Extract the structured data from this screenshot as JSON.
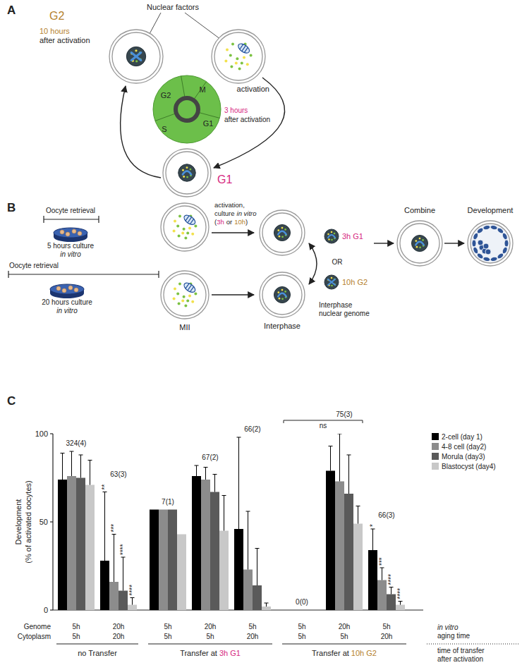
{
  "panel_a": {
    "label": "A",
    "nuclear_factors": "Nuclear factors",
    "activation": "activation",
    "g2": {
      "phase": "G2",
      "time": "10 hours",
      "note": "after activation"
    },
    "g1": {
      "phase": "G1",
      "time": "3 hours",
      "note": "after activation"
    },
    "cycle": [
      "G2",
      "M",
      "S",
      "G1"
    ]
  },
  "panel_b": {
    "label": "B",
    "retrieval": "Oocyte retrieval",
    "short_culture": [
      "5 hours culture",
      "in vitro"
    ],
    "long_culture": [
      "20 hours culture",
      "in vitro"
    ],
    "mii": "MII",
    "activation": {
      "line1": "activation,",
      "line2": "culture",
      "line2_italic": "in vitro",
      "open": "(",
      "early": "3h",
      "or": "or",
      "late": "10h",
      "close": ")"
    },
    "interphase": "Interphase",
    "g1_genome": "3h G1",
    "or": "OR",
    "g2_genome": "10h G2",
    "genome_label": [
      "Interphase",
      "nuclear genome"
    ],
    "combine": "Combine",
    "development": "Development"
  },
  "chart_data": {
    "type": "bar",
    "label": "C",
    "ylabel": [
      "Development",
      "(% of activated oocytes)"
    ],
    "categories": [
      "5h",
      "20h",
      "5h",
      "20h",
      "5h",
      "5h",
      "20h",
      "5h"
    ],
    "cytoplasm": [
      "5h",
      "20h",
      "5h",
      "5h",
      "20h",
      "5h",
      "5h",
      "20h"
    ],
    "row_labels": [
      "Genome",
      "Cytoplasm"
    ],
    "row_title": [
      "in vitro",
      "aging time"
    ],
    "group_title": [
      "time of transfer",
      "after activation"
    ],
    "groups": [
      {
        "label": "no Transfer",
        "span": [
          0,
          1
        ]
      },
      {
        "label": "Transfer at",
        "stage": "3h G1",
        "span": [
          2,
          4
        ]
      },
      {
        "label": "Transfer at",
        "stage": "10h G2",
        "span": [
          5,
          7
        ]
      }
    ],
    "n_labels": [
      "324(4)",
      "63(3)",
      "7(1)",
      "67(2)",
      "66(2)",
      "0(0)",
      "75(3)",
      "66(3)"
    ],
    "ylim": [
      0,
      100
    ],
    "yticks": [
      0,
      50,
      100
    ],
    "legend": "top-right",
    "series": [
      {
        "name": "2-cell (day 1)",
        "color": "#000000",
        "values": [
          74,
          28,
          57,
          76,
          46,
          0,
          79,
          34
        ],
        "errors": [
          15,
          39,
          null,
          6,
          52,
          null,
          14,
          12
        ]
      },
      {
        "name": "4-8 cell (day2)",
        "color": "#8c8c8c",
        "values": [
          76,
          16,
          57,
          74,
          23,
          0,
          73,
          17
        ],
        "errors": [
          14,
          27,
          null,
          7,
          33,
          null,
          27,
          7
        ]
      },
      {
        "name": "Morula (day3)",
        "color": "#5a5a5a",
        "values": [
          75,
          11,
          57,
          67,
          14,
          0,
          66,
          9
        ],
        "errors": [
          13,
          19,
          null,
          10,
          21,
          null,
          22,
          4
        ]
      },
      {
        "name": "Blastocyst (day4)",
        "color": "#c8c8c8",
        "values": [
          71,
          3,
          43,
          45,
          2,
          0,
          49,
          3
        ],
        "errors": [
          14,
          4,
          null,
          20,
          2,
          null,
          10,
          2
        ]
      }
    ],
    "annotations": [
      {
        "text": "**",
        "category": 1,
        "series": 0
      },
      {
        "text": "***",
        "category": 1,
        "series": 1
      },
      {
        "text": "****",
        "category": 1,
        "series": 2
      },
      {
        "text": "****",
        "category": 1,
        "series": 3
      },
      {
        "text": "*",
        "category": 7,
        "series": 0
      },
      {
        "text": "***",
        "category": 7,
        "series": 1
      },
      {
        "text": "****",
        "category": 7,
        "series": 2
      },
      {
        "text": "****",
        "category": 7,
        "series": 3
      }
    ],
    "brackets": [
      {
        "text": "ns",
        "categories": [
          5,
          6
        ]
      }
    ]
  }
}
